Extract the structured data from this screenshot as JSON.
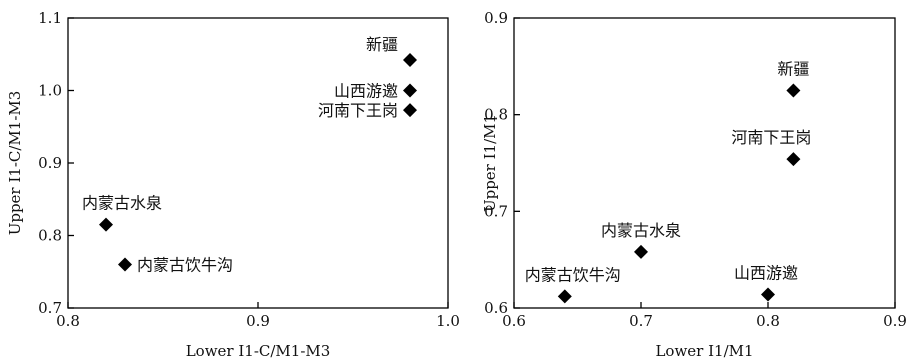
{
  "chart_data": [
    {
      "type": "scatter",
      "xlabel": "Lower I1-C/M1-M3",
      "ylabel": "Upper I1-C/M1-M3",
      "xlim": [
        0.8,
        1.0
      ],
      "ylim": [
        0.7,
        1.1
      ],
      "xticks": [
        "0.8",
        "0.9",
        "1.0"
      ],
      "yticks": [
        "0.7",
        "0.8",
        "0.9",
        "1.0",
        "1.1"
      ],
      "marker": "diamond",
      "marker_color": "#000000",
      "points": [
        {
          "label": "新疆",
          "x": 0.98,
          "y": 1.042
        },
        {
          "label": "山西游邀",
          "x": 0.98,
          "y": 1.0
        },
        {
          "label": "河南下王岗",
          "x": 0.98,
          "y": 0.973
        },
        {
          "label": "内蒙古水泉",
          "x": 0.82,
          "y": 0.815
        },
        {
          "label": "内蒙古饮牛沟",
          "x": 0.83,
          "y": 0.76
        }
      ]
    },
    {
      "type": "scatter",
      "xlabel": "Lower I1/M1",
      "ylabel": "Upper I1/M1",
      "xlim": [
        0.6,
        0.9
      ],
      "ylim": [
        0.6,
        0.9
      ],
      "xticks": [
        "0.6",
        "0.7",
        "0.8",
        "0.9"
      ],
      "yticks": [
        "0.6",
        "0.7",
        "0.8",
        "0.9"
      ],
      "marker": "diamond",
      "marker_color": "#000000",
      "points": [
        {
          "label": "新疆",
          "x": 0.82,
          "y": 0.825
        },
        {
          "label": "河南下王岗",
          "x": 0.82,
          "y": 0.754
        },
        {
          "label": "内蒙古水泉",
          "x": 0.7,
          "y": 0.658
        },
        {
          "label": "内蒙古饮牛沟",
          "x": 0.64,
          "y": 0.612
        },
        {
          "label": "山西游邀",
          "x": 0.8,
          "y": 0.614
        }
      ]
    }
  ]
}
